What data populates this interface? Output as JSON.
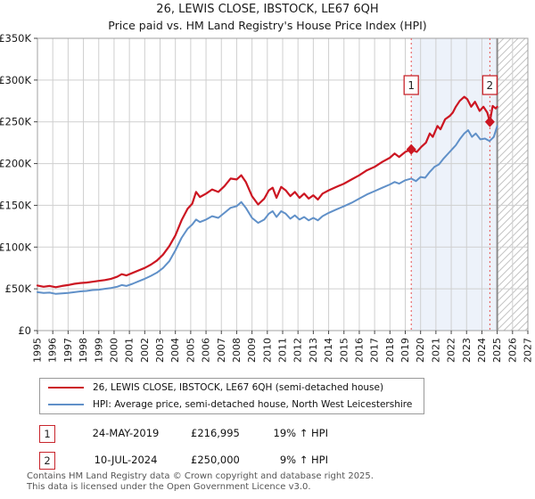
{
  "title": "26, LEWIS CLOSE, IBSTOCK, LE67 6QH",
  "subtitle": "Price paid vs. HM Land Registry's House Price Index (HPI)",
  "chart_data": {
    "type": "line",
    "xlim": [
      1995,
      2027
    ],
    "ylim": [
      0,
      350000
    ],
    "x_ticks": [
      1995,
      1996,
      1997,
      1998,
      1999,
      2000,
      2001,
      2002,
      2003,
      2004,
      2005,
      2006,
      2007,
      2008,
      2009,
      2010,
      2011,
      2012,
      2013,
      2014,
      2015,
      2016,
      2017,
      2018,
      2019,
      2020,
      2021,
      2022,
      2023,
      2024,
      2025,
      2026,
      2027
    ],
    "y_ticks": [
      {
        "v": 0,
        "label": "£0"
      },
      {
        "v": 50000,
        "label": "£50K"
      },
      {
        "v": 100000,
        "label": "£100K"
      },
      {
        "v": 150000,
        "label": "£150K"
      },
      {
        "v": 200000,
        "label": "£200K"
      },
      {
        "v": 250000,
        "label": "£250K"
      },
      {
        "v": 300000,
        "label": "£300K"
      },
      {
        "v": 350000,
        "label": "£350K"
      }
    ],
    "grid": true,
    "legend_position": "bottom",
    "shaded_region": [
      2019.39,
      2025.0
    ],
    "hatched_region": [
      2025.0,
      2027.0
    ],
    "colors": {
      "grid": "#cfcfcf",
      "border": "#a0a0a0",
      "tick": "#444444",
      "shade": "#edf2fa",
      "hatch": "#c4c4c4",
      "future_line": "#8c8c8c",
      "sale_line": "#e84f4f",
      "sale_box": "#c8252c"
    },
    "sales": [
      {
        "label": "1",
        "year": 2019.39,
        "price": 216995
      },
      {
        "label": "2",
        "year": 2024.52,
        "price": 250000
      }
    ],
    "series": [
      {
        "name": "26, LEWIS CLOSE, IBSTOCK, LE67 6QH (semi-detached house)",
        "color": "#cc1622",
        "points": [
          [
            1995.0,
            54000
          ],
          [
            1995.4,
            52500
          ],
          [
            1995.8,
            53500
          ],
          [
            1996.2,
            52000
          ],
          [
            1996.6,
            53500
          ],
          [
            1997.0,
            54500
          ],
          [
            1997.4,
            56000
          ],
          [
            1997.8,
            57000
          ],
          [
            1998.2,
            57500
          ],
          [
            1998.6,
            58500
          ],
          [
            1999.0,
            59500
          ],
          [
            1999.4,
            60500
          ],
          [
            1999.8,
            62000
          ],
          [
            2000.2,
            64500
          ],
          [
            2000.5,
            67500
          ],
          [
            2000.8,
            66000
          ],
          [
            2001.2,
            69000
          ],
          [
            2001.6,
            72000
          ],
          [
            2002.0,
            75000
          ],
          [
            2002.4,
            79000
          ],
          [
            2002.8,
            84000
          ],
          [
            2003.2,
            91000
          ],
          [
            2003.6,
            101000
          ],
          [
            2004.0,
            114000
          ],
          [
            2004.4,
            132000
          ],
          [
            2004.8,
            146000
          ],
          [
            2005.1,
            152000
          ],
          [
            2005.35,
            166000
          ],
          [
            2005.6,
            160000
          ],
          [
            2006.0,
            164000
          ],
          [
            2006.4,
            169000
          ],
          [
            2006.8,
            166000
          ],
          [
            2007.2,
            173000
          ],
          [
            2007.6,
            182000
          ],
          [
            2008.0,
            181000
          ],
          [
            2008.3,
            186000
          ],
          [
            2008.6,
            178000
          ],
          [
            2009.0,
            161000
          ],
          [
            2009.4,
            151000
          ],
          [
            2009.8,
            158000
          ],
          [
            2010.1,
            168000
          ],
          [
            2010.35,
            171000
          ],
          [
            2010.6,
            159000
          ],
          [
            2010.9,
            172000
          ],
          [
            2011.2,
            168000
          ],
          [
            2011.5,
            161000
          ],
          [
            2011.8,
            166000
          ],
          [
            2012.1,
            159000
          ],
          [
            2012.4,
            164000
          ],
          [
            2012.7,
            158000
          ],
          [
            2013.0,
            162000
          ],
          [
            2013.3,
            157000
          ],
          [
            2013.6,
            164000
          ],
          [
            2014.0,
            168000
          ],
          [
            2014.5,
            172000
          ],
          [
            2015.0,
            176000
          ],
          [
            2015.5,
            181000
          ],
          [
            2016.0,
            186000
          ],
          [
            2016.5,
            192000
          ],
          [
            2017.0,
            196000
          ],
          [
            2017.5,
            202000
          ],
          [
            2018.0,
            207000
          ],
          [
            2018.3,
            212000
          ],
          [
            2018.6,
            208000
          ],
          [
            2019.0,
            214000
          ],
          [
            2019.39,
            216995
          ],
          [
            2019.75,
            214000
          ],
          [
            2020.05,
            220000
          ],
          [
            2020.35,
            225000
          ],
          [
            2020.6,
            236000
          ],
          [
            2020.8,
            232000
          ],
          [
            2021.1,
            245000
          ],
          [
            2021.3,
            241000
          ],
          [
            2021.6,
            253000
          ],
          [
            2021.9,
            257000
          ],
          [
            2022.1,
            261000
          ],
          [
            2022.3,
            268000
          ],
          [
            2022.55,
            275000
          ],
          [
            2022.85,
            280000
          ],
          [
            2023.05,
            277000
          ],
          [
            2023.3,
            268000
          ],
          [
            2023.55,
            274000
          ],
          [
            2023.85,
            263000
          ],
          [
            2024.1,
            268000
          ],
          [
            2024.35,
            261000
          ],
          [
            2024.52,
            250000
          ],
          [
            2024.7,
            269000
          ],
          [
            2024.9,
            266000
          ],
          [
            2025.0,
            268000
          ]
        ]
      },
      {
        "name": "HPI: Average price, semi-detached house, North West Leicestershire",
        "color": "#6090c8",
        "points": [
          [
            1995.0,
            46000
          ],
          [
            1995.4,
            45000
          ],
          [
            1995.8,
            45500
          ],
          [
            1996.2,
            44000
          ],
          [
            1996.6,
            44500
          ],
          [
            1997.0,
            45000
          ],
          [
            1997.4,
            46000
          ],
          [
            1997.8,
            47000
          ],
          [
            1998.2,
            47500
          ],
          [
            1998.6,
            48500
          ],
          [
            1999.0,
            49000
          ],
          [
            1999.4,
            50000
          ],
          [
            1999.8,
            51000
          ],
          [
            2000.2,
            52500
          ],
          [
            2000.5,
            54500
          ],
          [
            2000.8,
            53500
          ],
          [
            2001.2,
            56000
          ],
          [
            2001.6,
            59000
          ],
          [
            2002.0,
            62000
          ],
          [
            2002.4,
            65500
          ],
          [
            2002.8,
            69500
          ],
          [
            2003.2,
            75000
          ],
          [
            2003.6,
            83000
          ],
          [
            2004.0,
            96000
          ],
          [
            2004.4,
            111000
          ],
          [
            2004.8,
            122000
          ],
          [
            2005.1,
            127000
          ],
          [
            2005.35,
            133000
          ],
          [
            2005.6,
            130000
          ],
          [
            2006.0,
            133000
          ],
          [
            2006.4,
            137000
          ],
          [
            2006.8,
            135000
          ],
          [
            2007.2,
            141000
          ],
          [
            2007.6,
            147000
          ],
          [
            2008.0,
            149000
          ],
          [
            2008.3,
            154000
          ],
          [
            2008.6,
            147000
          ],
          [
            2009.0,
            135000
          ],
          [
            2009.4,
            129000
          ],
          [
            2009.8,
            133000
          ],
          [
            2010.1,
            140000
          ],
          [
            2010.35,
            143000
          ],
          [
            2010.6,
            136000
          ],
          [
            2010.9,
            143000
          ],
          [
            2011.2,
            140000
          ],
          [
            2011.5,
            134000
          ],
          [
            2011.8,
            138000
          ],
          [
            2012.1,
            133000
          ],
          [
            2012.4,
            136000
          ],
          [
            2012.7,
            132000
          ],
          [
            2013.0,
            135000
          ],
          [
            2013.3,
            132000
          ],
          [
            2013.6,
            137000
          ],
          [
            2014.0,
            141000
          ],
          [
            2014.5,
            145000
          ],
          [
            2015.0,
            149000
          ],
          [
            2015.5,
            153000
          ],
          [
            2016.0,
            158000
          ],
          [
            2016.5,
            163000
          ],
          [
            2017.0,
            167000
          ],
          [
            2017.5,
            171000
          ],
          [
            2018.0,
            175000
          ],
          [
            2018.3,
            178000
          ],
          [
            2018.6,
            176000
          ],
          [
            2019.0,
            180000
          ],
          [
            2019.39,
            182000
          ],
          [
            2019.7,
            179000
          ],
          [
            2020.0,
            184000
          ],
          [
            2020.3,
            183000
          ],
          [
            2020.6,
            190000
          ],
          [
            2020.9,
            196000
          ],
          [
            2021.2,
            199000
          ],
          [
            2021.5,
            206000
          ],
          [
            2021.9,
            214000
          ],
          [
            2022.3,
            222000
          ],
          [
            2022.55,
            229000
          ],
          [
            2022.85,
            236000
          ],
          [
            2023.1,
            240000
          ],
          [
            2023.35,
            232000
          ],
          [
            2023.6,
            236000
          ],
          [
            2023.9,
            229000
          ],
          [
            2024.2,
            230000
          ],
          [
            2024.5,
            227000
          ],
          [
            2024.78,
            232000
          ],
          [
            2025.0,
            245000
          ]
        ]
      }
    ]
  },
  "annotations": [
    {
      "num": "1",
      "date": "24-MAY-2019",
      "price": "£216,995",
      "hpi": "19% ↑ HPI"
    },
    {
      "num": "2",
      "date": "10-JUL-2024",
      "price": "£250,000",
      "hpi": "9% ↑ HPI"
    }
  ],
  "footer": {
    "line1": "Contains HM Land Registry data © Crown copyright and database right 2025.",
    "line2": "This data is licensed under the Open Government Licence v3.0."
  }
}
